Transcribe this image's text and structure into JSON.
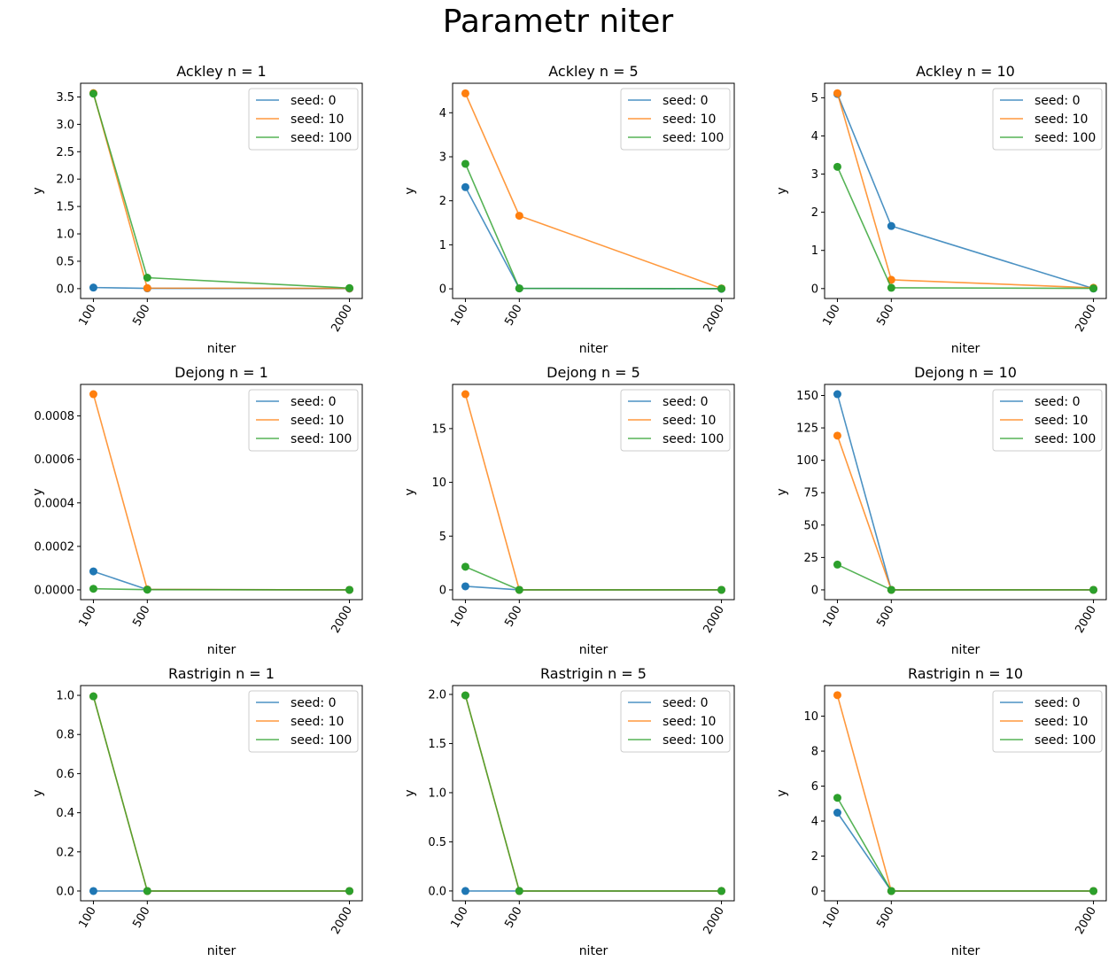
{
  "figure": {
    "suptitle": "Parametr niter"
  },
  "series_colors": [
    "#1f77b4",
    "#ff7f0e",
    "#2ca02c"
  ],
  "chart_data": [
    {
      "type": "line",
      "title": "Ackley n = 1",
      "xlabel": "niter",
      "ylabel": "y",
      "x": [
        100,
        500,
        2000
      ],
      "xticks": [
        "100",
        "500",
        "2000"
      ],
      "ylim": [
        -0.18,
        3.75
      ],
      "yticks": [
        {
          "v": 0,
          "label": "0.0"
        },
        {
          "v": 0.5,
          "label": "0.5"
        },
        {
          "v": 1.0,
          "label": "1.0"
        },
        {
          "v": 1.5,
          "label": "1.5"
        },
        {
          "v": 2.0,
          "label": "2.0"
        },
        {
          "v": 2.5,
          "label": "2.5"
        },
        {
          "v": 3.0,
          "label": "3.0"
        },
        {
          "v": 3.5,
          "label": "3.5"
        }
      ],
      "legend": "upper right",
      "series": [
        {
          "name": "seed: 0",
          "values": [
            0.02,
            0.005,
            0.0
          ]
        },
        {
          "name": "seed: 10",
          "values": [
            3.57,
            0.01,
            0.005
          ]
        },
        {
          "name": "seed: 100",
          "values": [
            3.56,
            0.2,
            0.01
          ]
        }
      ]
    },
    {
      "type": "line",
      "title": "Ackley n = 5",
      "xlabel": "niter",
      "ylabel": "y",
      "x": [
        100,
        500,
        2000
      ],
      "xticks": [
        "100",
        "500",
        "2000"
      ],
      "ylim": [
        -0.22,
        4.67
      ],
      "yticks": [
        {
          "v": 0,
          "label": "0"
        },
        {
          "v": 1,
          "label": "1"
        },
        {
          "v": 2,
          "label": "2"
        },
        {
          "v": 3,
          "label": "3"
        },
        {
          "v": 4,
          "label": "4"
        }
      ],
      "legend": "upper right",
      "series": [
        {
          "name": "seed: 0",
          "values": [
            2.31,
            0.01,
            0.0
          ]
        },
        {
          "name": "seed: 10",
          "values": [
            4.44,
            1.66,
            0.01
          ]
        },
        {
          "name": "seed: 100",
          "values": [
            2.84,
            0.01,
            0.005
          ]
        }
      ]
    },
    {
      "type": "line",
      "title": "Ackley n = 10",
      "xlabel": "niter",
      "ylabel": "y",
      "x": [
        100,
        500,
        2000
      ],
      "xticks": [
        "100",
        "500",
        "2000"
      ],
      "ylim": [
        -0.26,
        5.38
      ],
      "yticks": [
        {
          "v": 0,
          "label": "0"
        },
        {
          "v": 1,
          "label": "1"
        },
        {
          "v": 2,
          "label": "2"
        },
        {
          "v": 3,
          "label": "3"
        },
        {
          "v": 4,
          "label": "4"
        },
        {
          "v": 5,
          "label": "5"
        }
      ],
      "legend": "upper right",
      "series": [
        {
          "name": "seed: 0",
          "values": [
            5.1,
            1.64,
            0.0
          ]
        },
        {
          "name": "seed: 10",
          "values": [
            5.12,
            0.23,
            0.02
          ]
        },
        {
          "name": "seed: 100",
          "values": [
            3.19,
            0.02,
            0.005
          ]
        }
      ]
    },
    {
      "type": "line",
      "title": "Dejong n = 1",
      "xlabel": "niter",
      "ylabel": "y",
      "x": [
        100,
        500,
        2000
      ],
      "xticks": [
        "100",
        "500",
        "2000"
      ],
      "ylim": [
        -4.5e-05,
        0.000945
      ],
      "yticks": [
        {
          "v": 0,
          "label": "0.0000"
        },
        {
          "v": 0.0002,
          "label": "0.0002"
        },
        {
          "v": 0.0004,
          "label": "0.0004"
        },
        {
          "v": 0.0006,
          "label": "0.0006"
        },
        {
          "v": 0.0008,
          "label": "0.0008"
        }
      ],
      "legend": "upper right",
      "series": [
        {
          "name": "seed: 0",
          "values": [
            8.5e-05,
            1.5e-06,
            0.0
          ]
        },
        {
          "name": "seed: 10",
          "values": [
            0.0009,
            2e-06,
            0.0
          ]
        },
        {
          "name": "seed: 100",
          "values": [
            5e-06,
            1e-06,
            0.0
          ]
        }
      ]
    },
    {
      "type": "line",
      "title": "Dejong n = 5",
      "xlabel": "niter",
      "ylabel": "y",
      "x": [
        100,
        500,
        2000
      ],
      "xticks": [
        "100",
        "500",
        "2000"
      ],
      "ylim": [
        -0.91,
        19.11
      ],
      "yticks": [
        {
          "v": 0,
          "label": "0"
        },
        {
          "v": 5,
          "label": "5"
        },
        {
          "v": 10,
          "label": "10"
        },
        {
          "v": 15,
          "label": "15"
        }
      ],
      "legend": "upper right",
      "series": [
        {
          "name": "seed: 0",
          "values": [
            0.33,
            0.0,
            0.0
          ]
        },
        {
          "name": "seed: 10",
          "values": [
            18.2,
            0.0,
            0.0
          ]
        },
        {
          "name": "seed: 100",
          "values": [
            2.15,
            0.0,
            0.0
          ]
        }
      ]
    },
    {
      "type": "line",
      "title": "Dejong n = 10",
      "xlabel": "niter",
      "ylabel": "y",
      "x": [
        100,
        500,
        2000
      ],
      "xticks": [
        "100",
        "500",
        "2000"
      ],
      "ylim": [
        -7.55,
        158.55
      ],
      "yticks": [
        {
          "v": 0,
          "label": "0"
        },
        {
          "v": 25,
          "label": "25"
        },
        {
          "v": 50,
          "label": "50"
        },
        {
          "v": 75,
          "label": "75"
        },
        {
          "v": 100,
          "label": "100"
        },
        {
          "v": 125,
          "label": "125"
        },
        {
          "v": 150,
          "label": "150"
        }
      ],
      "legend": "upper right",
      "series": [
        {
          "name": "seed: 0",
          "values": [
            151,
            0.0,
            0.0
          ]
        },
        {
          "name": "seed: 10",
          "values": [
            119,
            0.0,
            0.0
          ]
        },
        {
          "name": "seed: 100",
          "values": [
            19.5,
            0.0,
            0.0
          ]
        }
      ]
    },
    {
      "type": "line",
      "title": "Rastrigin n = 1",
      "xlabel": "niter",
      "ylabel": "y",
      "x": [
        100,
        500,
        2000
      ],
      "xticks": [
        "100",
        "500",
        "2000"
      ],
      "ylim": [
        -0.05,
        1.05
      ],
      "yticks": [
        {
          "v": 0,
          "label": "0.0"
        },
        {
          "v": 0.2,
          "label": "0.2"
        },
        {
          "v": 0.4,
          "label": "0.4"
        },
        {
          "v": 0.6,
          "label": "0.6"
        },
        {
          "v": 0.8,
          "label": "0.8"
        },
        {
          "v": 1.0,
          "label": "1.0"
        }
      ],
      "legend": "upper right",
      "series": [
        {
          "name": "seed: 0",
          "values": [
            0.0,
            0.0,
            0.0
          ]
        },
        {
          "name": "seed: 10",
          "values": [
            0.995,
            0.0,
            0.0
          ]
        },
        {
          "name": "seed: 100",
          "values": [
            0.995,
            0.0,
            0.0
          ]
        }
      ]
    },
    {
      "type": "line",
      "title": "Rastrigin n = 5",
      "xlabel": "niter",
      "ylabel": "y",
      "x": [
        100,
        500,
        2000
      ],
      "xticks": [
        "100",
        "500",
        "2000"
      ],
      "ylim": [
        -0.1,
        2.09
      ],
      "yticks": [
        {
          "v": 0,
          "label": "0.0"
        },
        {
          "v": 0.5,
          "label": "0.5"
        },
        {
          "v": 1.0,
          "label": "1.0"
        },
        {
          "v": 1.5,
          "label": "1.5"
        },
        {
          "v": 2.0,
          "label": "2.0"
        }
      ],
      "legend": "upper right",
      "series": [
        {
          "name": "seed: 0",
          "values": [
            0.0,
            0.0,
            0.0
          ]
        },
        {
          "name": "seed: 10",
          "values": [
            1.99,
            0.0,
            0.0
          ]
        },
        {
          "name": "seed: 100",
          "values": [
            1.99,
            0.0,
            0.0
          ]
        }
      ]
    },
    {
      "type": "line",
      "title": "Rastrigin n = 10",
      "xlabel": "niter",
      "ylabel": "y",
      "x": [
        100,
        500,
        2000
      ],
      "xticks": [
        "100",
        "500",
        "2000"
      ],
      "ylim": [
        -0.56,
        11.75
      ],
      "yticks": [
        {
          "v": 0,
          "label": "0"
        },
        {
          "v": 2,
          "label": "2"
        },
        {
          "v": 4,
          "label": "4"
        },
        {
          "v": 6,
          "label": "6"
        },
        {
          "v": 8,
          "label": "8"
        },
        {
          "v": 10,
          "label": "10"
        }
      ],
      "legend": "upper right",
      "series": [
        {
          "name": "seed: 0",
          "values": [
            4.48,
            0.0,
            0.0
          ]
        },
        {
          "name": "seed: 10",
          "values": [
            11.2,
            0.0,
            0.0
          ]
        },
        {
          "name": "seed: 100",
          "values": [
            5.33,
            0.0,
            0.0
          ]
        }
      ]
    }
  ]
}
